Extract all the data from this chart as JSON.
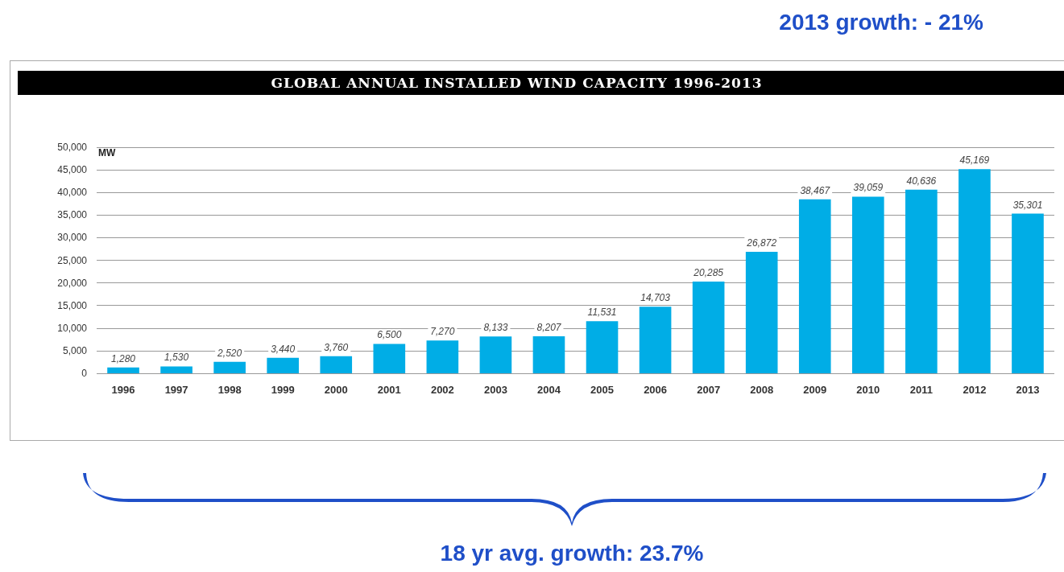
{
  "chart_data": {
    "type": "bar",
    "title": "GLOBAL ANNUAL INSTALLED WIND CAPACITY 1996-2013",
    "ylabel": "MW",
    "categories": [
      "1996",
      "1997",
      "1998",
      "1999",
      "2000",
      "2001",
      "2002",
      "2003",
      "2004",
      "2005",
      "2006",
      "2007",
      "2008",
      "2009",
      "2010",
      "2011",
      "2012",
      "2013"
    ],
    "values": [
      1280,
      1530,
      2520,
      3440,
      3760,
      6500,
      7270,
      8133,
      8207,
      11531,
      14703,
      20285,
      26872,
      38467,
      39059,
      40636,
      45169,
      35301
    ],
    "color": "#00ade6",
    "value_labels": [
      "1,280",
      "1,530",
      "2,520",
      "3,440",
      "3,760",
      "6,500",
      "7,270",
      "8,133",
      "8,207",
      "11,531",
      "14,703",
      "20,285",
      "26,872",
      "38,467",
      "39,059",
      "40,636",
      "45,169",
      "35,301"
    ],
    "ylim": [
      0,
      50000
    ],
    "yticks": [
      0,
      {
        "value": 5000,
        "label": "5,000"
      },
      {
        "value": 10000,
        "label": "10,000"
      },
      {
        "value": 15000,
        "label": "15,000"
      },
      {
        "value": 20000,
        "label": "20,000"
      },
      {
        "value": 25000,
        "label": "25,000"
      },
      {
        "value": 30000,
        "label": "30,000"
      },
      {
        "value": 35000,
        "label": "35,000"
      },
      {
        "value": 40000,
        "label": "40,000"
      },
      {
        "value": 45000,
        "label": "45,000"
      },
      {
        "value": 50000,
        "label": "50,000"
      }
    ],
    "grid": "y",
    "annotations": [
      "2013 growth: - 21%",
      "18 yr avg. growth: 23.7%"
    ]
  }
}
